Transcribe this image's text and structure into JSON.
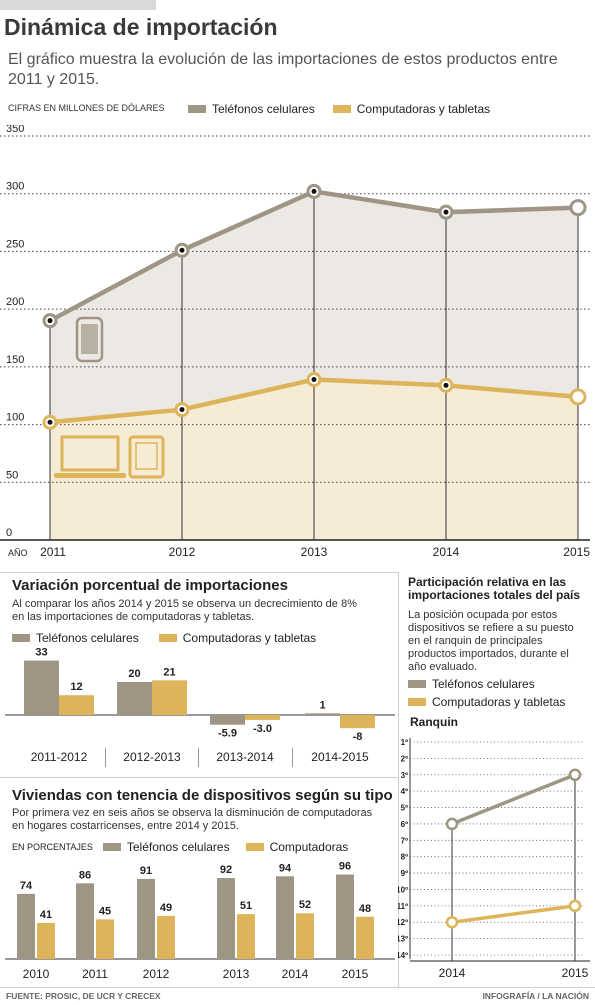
{
  "header": {
    "title": "Dinámica de importación",
    "subtitle": "El gráfico muestra la evolución de las importaciones de estos productos entre 2011 y 2015.",
    "units": "CIFRAS EN MILLONES DE DÓLARES"
  },
  "colors": {
    "phones": "#9e9584",
    "computers": "#ddb45a",
    "phones_area": "#ece8e3",
    "computers_area": "#f6ecd5"
  },
  "legend": {
    "phones": "Teléfonos celulares",
    "computers": "Computadoras y tabletas"
  },
  "icons": [
    "phone-icon",
    "laptop-icon",
    "tablet-icon"
  ],
  "variation": {
    "title": "Variación porcentual de importaciones",
    "text": "Al comparar los años 2014 y 2015 se observa un decrecimiento de 8% en las importaciones de computadoras y tabletas."
  },
  "households": {
    "title": "Viviendas con tenencia de dispositivos según su tipo",
    "text": "Por primera vez en seis años se observa la disminución de computadoras en hogares costarricenses, entre 2014 y 2015.",
    "units": "EN PORCENTAJES",
    "computers_label": "Computadoras"
  },
  "ranking": {
    "title": "Participación relativa en las importaciones totales del país",
    "text": "La posición ocupada por estos dispositivos se refiere a su puesto en el ranquin de principales productos importados, durante el año evaluado.",
    "axis_title": "Ranquin"
  },
  "footer": {
    "source": "FUENTE: PROSIC, DE UCR Y CRECEX",
    "credit": "INFOGRAFÍA / LA NACIÓN"
  },
  "chart_data": [
    {
      "type": "area",
      "title": "Dinámica de importación",
      "xlabel": "AÑO",
      "ylabel": "CIFRAS EN MILLONES DE DÓLARES",
      "x": [
        "2011",
        "2012",
        "2013",
        "2014",
        "2015"
      ],
      "ylim": [
        0,
        350
      ],
      "yticks": [
        0,
        50,
        100,
        150,
        200,
        250,
        300,
        350
      ],
      "grid": true,
      "legend_position": "top",
      "series": [
        {
          "name": "Teléfonos celulares",
          "values": [
            190,
            251,
            302,
            284,
            288
          ]
        },
        {
          "name": "Computadoras y tabletas",
          "values": [
            102,
            113,
            139,
            134,
            124
          ]
        }
      ]
    },
    {
      "type": "bar",
      "title": "Variación porcentual de importaciones",
      "categories": [
        "2011-2012",
        "2012-2013",
        "2013-2014",
        "2014-2015"
      ],
      "series": [
        {
          "name": "Teléfonos celulares",
          "values": [
            33,
            20,
            -5.9,
            1
          ],
          "labels": [
            "33",
            "20",
            "-5.9",
            "1"
          ]
        },
        {
          "name": "Computadoras y tabletas",
          "values": [
            12,
            21,
            -3.0,
            -8
          ],
          "labels": [
            "12",
            "21",
            "-3.0",
            "-8"
          ]
        }
      ]
    },
    {
      "type": "bar",
      "title": "Viviendas con tenencia de dispositivos según su tipo",
      "ylabel": "EN PORCENTAJES",
      "categories": [
        "2010",
        "2011",
        "2012",
        "2013",
        "2014",
        "2015"
      ],
      "series": [
        {
          "name": "Teléfonos celulares",
          "values": [
            74,
            86,
            91,
            92,
            94,
            96
          ]
        },
        {
          "name": "Computadoras",
          "values": [
            41,
            45,
            49,
            51,
            52,
            48
          ]
        }
      ]
    },
    {
      "type": "line",
      "title": "Participación relativa en las importaciones totales del país",
      "ylabel": "Ranquin",
      "x": [
        "2014",
        "2015"
      ],
      "y_inverted": true,
      "ylim": [
        1,
        14
      ],
      "yticks": [
        "1º",
        "2º",
        "3º",
        "4º",
        "5º",
        "6º",
        "7º",
        "8º",
        "9º",
        "10º",
        "11º",
        "12º",
        "13º",
        "14º"
      ],
      "series": [
        {
          "name": "Teléfonos celulares",
          "values": [
            6,
            3
          ]
        },
        {
          "name": "Computadoras y tabletas",
          "values": [
            12,
            11
          ]
        }
      ]
    }
  ]
}
